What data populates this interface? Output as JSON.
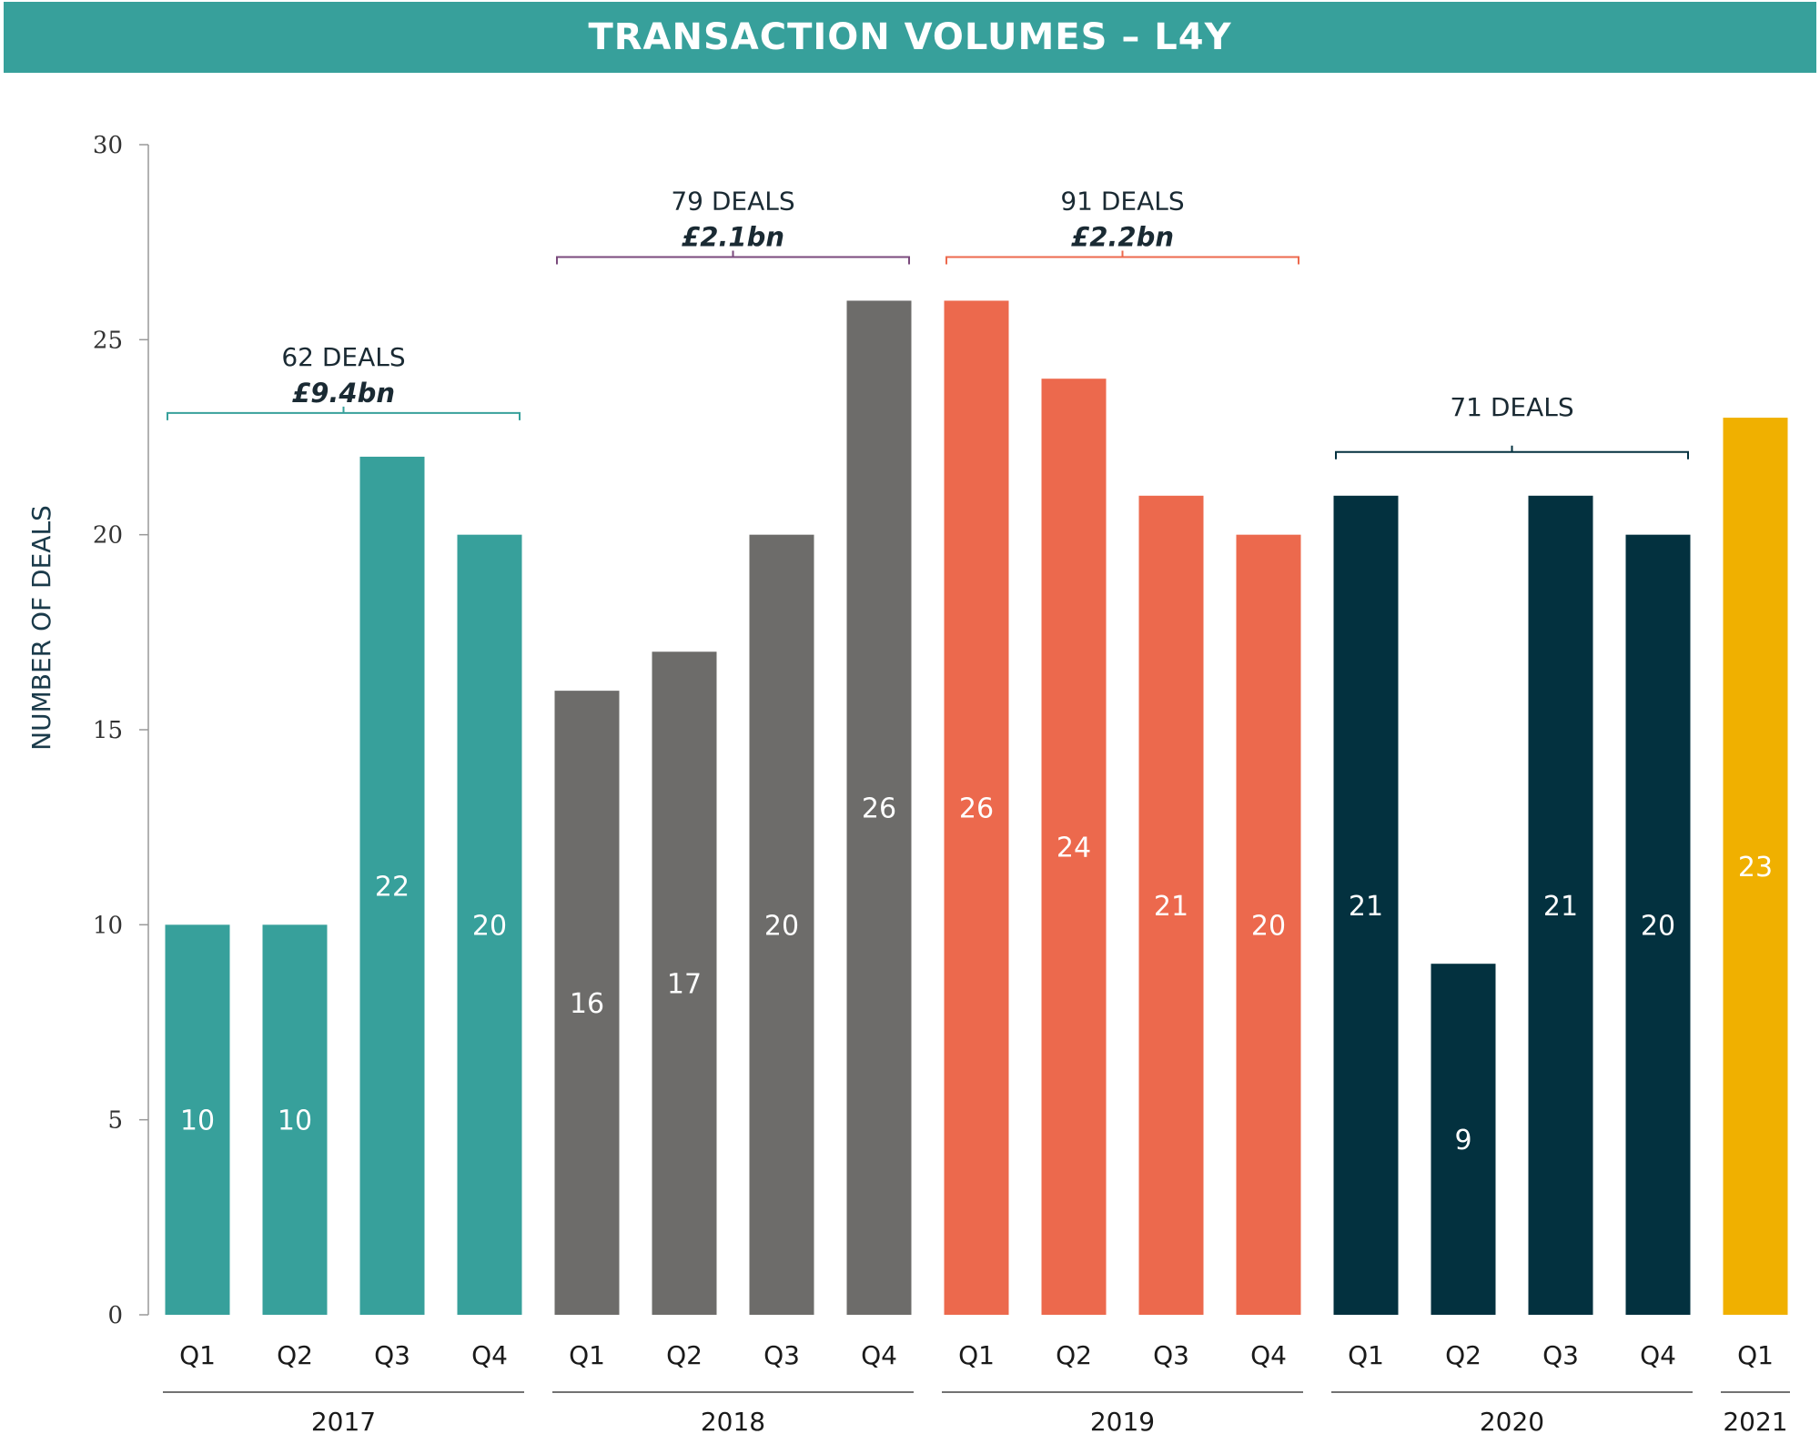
{
  "header": {
    "title": "TRANSACTION VOLUMES – L4Y"
  },
  "chart_data": {
    "type": "bar",
    "title": "TRANSACTION VOLUMES – L4Y",
    "ylabel": "NUMBER OF DEALS",
    "xlabel": "",
    "ylim": [
      0,
      30
    ],
    "yticks": [
      0,
      5,
      10,
      15,
      20,
      25,
      30
    ],
    "grid": false,
    "data_labels": true,
    "groups": [
      {
        "year": "2017",
        "color": "#37a09b",
        "quarters": [
          "Q1",
          "Q2",
          "Q3",
          "Q4"
        ],
        "values": [
          10,
          10,
          22,
          20
        ],
        "annotation": {
          "deals": "62 DEALS",
          "value": "£9.4bn",
          "bracket_color": "#37a09b"
        }
      },
      {
        "year": "2018",
        "color": "#6d6c6a",
        "quarters": [
          "Q1",
          "Q2",
          "Q3",
          "Q4"
        ],
        "values": [
          16,
          17,
          20,
          26
        ],
        "annotation": {
          "deals": "79 DEALS",
          "value": "£2.1bn",
          "bracket_color": "#7a4a7c"
        }
      },
      {
        "year": "2019",
        "color": "#ec694d",
        "quarters": [
          "Q1",
          "Q2",
          "Q3",
          "Q4"
        ],
        "values": [
          26,
          24,
          21,
          20
        ],
        "annotation": {
          "deals": "91 DEALS",
          "value": "£2.2bn",
          "bracket_color": "#ec694d"
        }
      },
      {
        "year": "2020",
        "color": "#03313f",
        "quarters": [
          "Q1",
          "Q2",
          "Q3",
          "Q4"
        ],
        "values": [
          21,
          9,
          21,
          20
        ],
        "annotation": {
          "deals": "71 DEALS",
          "value": "",
          "bracket_color": "#03313f"
        }
      },
      {
        "year": "2021",
        "color": "#f0b000",
        "quarters": [
          "Q1"
        ],
        "values": [
          23
        ],
        "annotation": null
      }
    ]
  }
}
